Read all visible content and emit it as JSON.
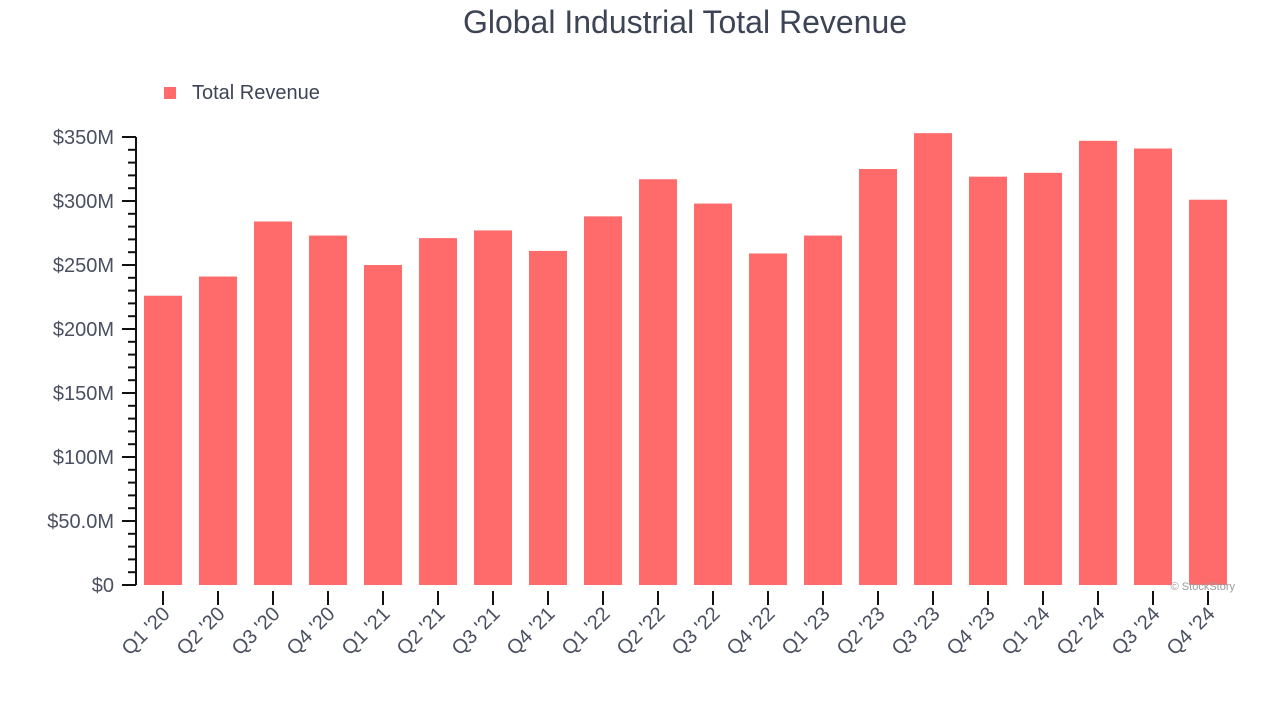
{
  "chart_data": {
    "type": "bar",
    "title": "Global Industrial Total Revenue",
    "xlabel": "",
    "ylabel": "",
    "ylim": [
      0,
      350
    ],
    "y_unit": "$M",
    "y_ticks": [
      {
        "value": 0,
        "label": "$0"
      },
      {
        "value": 50,
        "label": "$50.0M"
      },
      {
        "value": 100,
        "label": "$100M"
      },
      {
        "value": 150,
        "label": "$150M"
      },
      {
        "value": 200,
        "label": "$200M"
      },
      {
        "value": 250,
        "label": "$250M"
      },
      {
        "value": 300,
        "label": "$300M"
      },
      {
        "value": 350,
        "label": "$350M"
      }
    ],
    "minor_tick_step": 10,
    "grid": false,
    "legend_position": "top-left",
    "categories": [
      "Q1 '20",
      "Q2 '20",
      "Q3 '20",
      "Q4 '20",
      "Q1 '21",
      "Q2 '21",
      "Q3 '21",
      "Q4 '21",
      "Q1 '22",
      "Q2 '22",
      "Q3 '22",
      "Q4 '22",
      "Q1 '23",
      "Q2 '23",
      "Q3 '23",
      "Q4 '23",
      "Q1 '24",
      "Q2 '24",
      "Q3 '24",
      "Q4 '24"
    ],
    "series": [
      {
        "name": "Total Revenue",
        "color": "#ff6b6b",
        "values": [
          226,
          241,
          284,
          273,
          250,
          271,
          277,
          261,
          288,
          317,
          298,
          259,
          273,
          325,
          353,
          319,
          322,
          347,
          341,
          301
        ]
      }
    ],
    "watermark": "© StockStory"
  }
}
